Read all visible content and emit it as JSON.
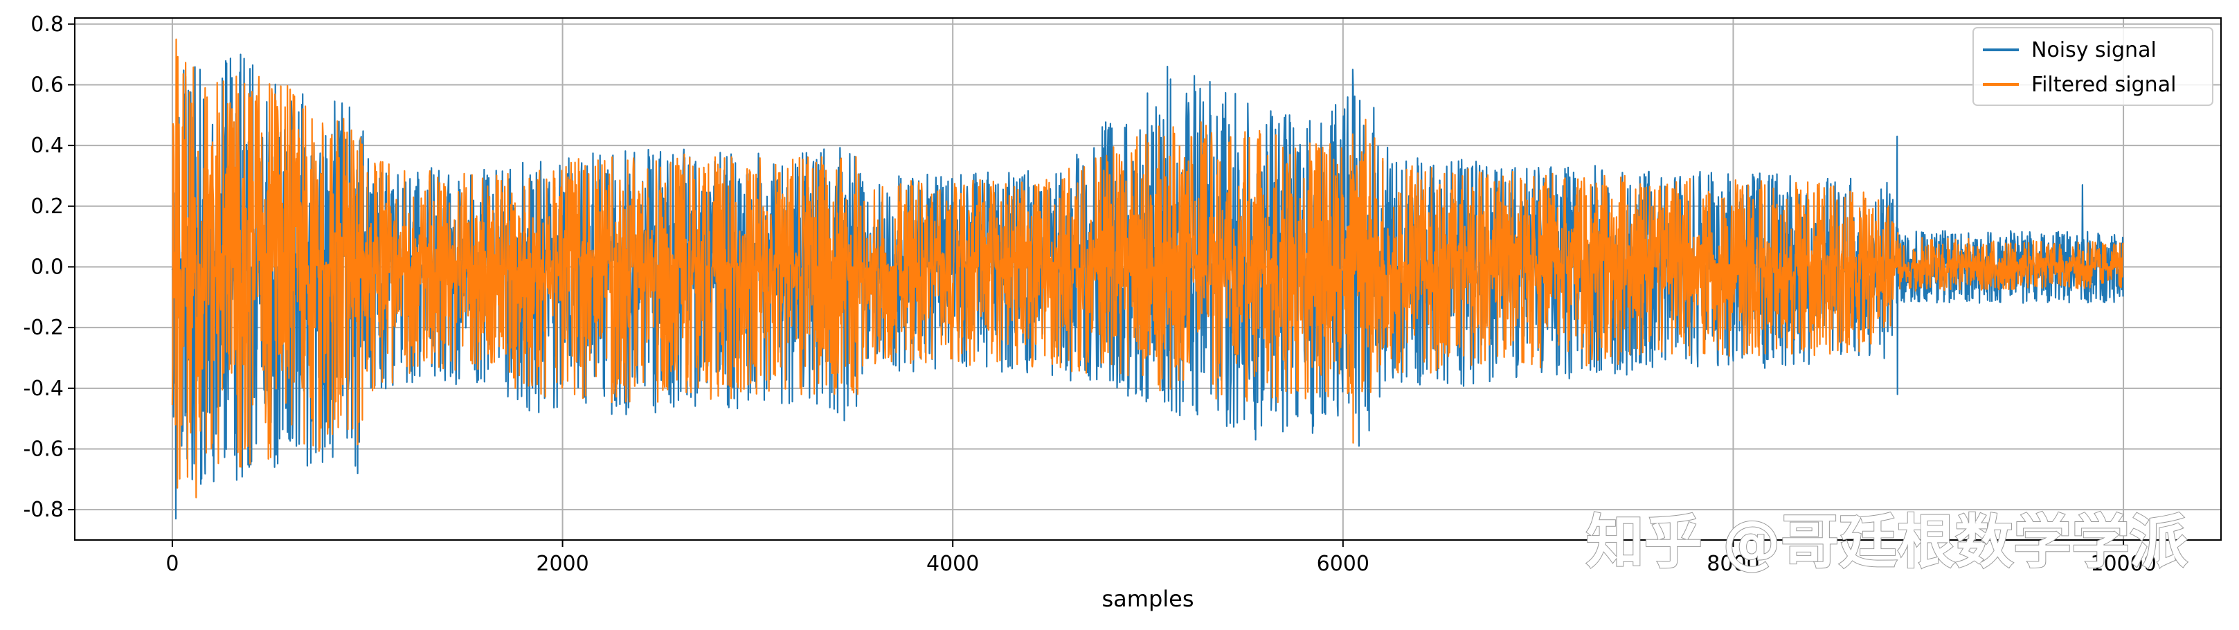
{
  "watermark": "知乎 @哥廷根数学学派",
  "chart_data": {
    "type": "line",
    "title": "",
    "xlabel": "samples",
    "ylabel": "",
    "xlim": [
      -500,
      10500
    ],
    "ylim": [
      -0.9,
      0.82
    ],
    "xticks": [
      0,
      2000,
      4000,
      6000,
      8000,
      10000
    ],
    "xtick_labels": [
      "0",
      "2000",
      "4000",
      "6000",
      "8000",
      "10000"
    ],
    "yticks": [
      -0.8,
      -0.6,
      -0.4,
      -0.2,
      0.0,
      0.2,
      0.4,
      0.6,
      0.8
    ],
    "ytick_labels": [
      "-0.8",
      "-0.6",
      "-0.4",
      "-0.2",
      "0.0",
      "0.2",
      "0.4",
      "0.6",
      "0.8"
    ],
    "grid": true,
    "legend_position": "top-right",
    "num_samples": 10000,
    "series": [
      {
        "name": "Noisy signal",
        "color": "#1f77b4",
        "envelope_x": [
          0,
          20,
          150,
          350,
          600,
          950,
          1000,
          1300,
          1700,
          1750,
          2500,
          3200,
          3500,
          3550,
          4500,
          5000,
          5200,
          5600,
          5900,
          6000,
          6150,
          6200,
          6500,
          7500,
          8500,
          8800,
          8850,
          9999
        ],
        "envelope_upper": [
          0.5,
          0.72,
          0.65,
          0.7,
          0.6,
          0.55,
          0.38,
          0.33,
          0.32,
          0.36,
          0.4,
          0.38,
          0.4,
          0.3,
          0.32,
          0.6,
          0.66,
          0.52,
          0.48,
          0.58,
          0.64,
          0.4,
          0.36,
          0.33,
          0.3,
          0.28,
          0.12,
          0.12
        ],
        "envelope_lower": [
          -0.65,
          -0.8,
          -0.72,
          -0.75,
          -0.65,
          -0.7,
          -0.45,
          -0.38,
          -0.4,
          -0.48,
          -0.5,
          -0.45,
          -0.52,
          -0.35,
          -0.36,
          -0.45,
          -0.5,
          -0.55,
          -0.55,
          -0.5,
          -0.55,
          -0.4,
          -0.4,
          -0.36,
          -0.32,
          -0.3,
          -0.12,
          -0.12
        ],
        "highlights": [
          {
            "x": 15,
            "y": -0.83
          },
          {
            "x": 350,
            "y": 0.7
          },
          {
            "x": 5100,
            "y": 0.66
          },
          {
            "x": 6050,
            "y": 0.65
          },
          {
            "x": 5550,
            "y": -0.57
          },
          {
            "x": 6080,
            "y": -0.59
          },
          {
            "x": 8840,
            "y": 0.43
          },
          {
            "x": 8840,
            "y": -0.42
          },
          {
            "x": 9790,
            "y": 0.27
          }
        ]
      },
      {
        "name": "Filtered signal",
        "color": "#ff7f0e",
        "envelope_x": [
          0,
          20,
          150,
          350,
          600,
          950,
          1000,
          1300,
          1700,
          1750,
          2500,
          3200,
          3500,
          3550,
          4500,
          5000,
          5200,
          5600,
          5900,
          6000,
          6150,
          6200,
          6500,
          7500,
          8500,
          8800,
          8850,
          9999
        ],
        "envelope_upper": [
          0.5,
          0.75,
          0.62,
          0.65,
          0.6,
          0.5,
          0.36,
          0.32,
          0.3,
          0.34,
          0.38,
          0.36,
          0.38,
          0.28,
          0.3,
          0.45,
          0.5,
          0.45,
          0.4,
          0.44,
          0.5,
          0.36,
          0.33,
          0.3,
          0.28,
          0.26,
          0.1,
          0.08
        ],
        "envelope_lower": [
          -0.55,
          -0.76,
          -0.65,
          -0.68,
          -0.6,
          -0.62,
          -0.42,
          -0.34,
          -0.36,
          -0.42,
          -0.46,
          -0.42,
          -0.46,
          -0.32,
          -0.33,
          -0.4,
          -0.44,
          -0.45,
          -0.44,
          -0.42,
          -0.45,
          -0.35,
          -0.35,
          -0.32,
          -0.29,
          -0.27,
          -0.08,
          -0.07
        ],
        "highlights": [
          {
            "x": 20,
            "y": 0.75
          },
          {
            "x": 120,
            "y": -0.76
          },
          {
            "x": 6050,
            "y": -0.58
          }
        ]
      }
    ]
  }
}
